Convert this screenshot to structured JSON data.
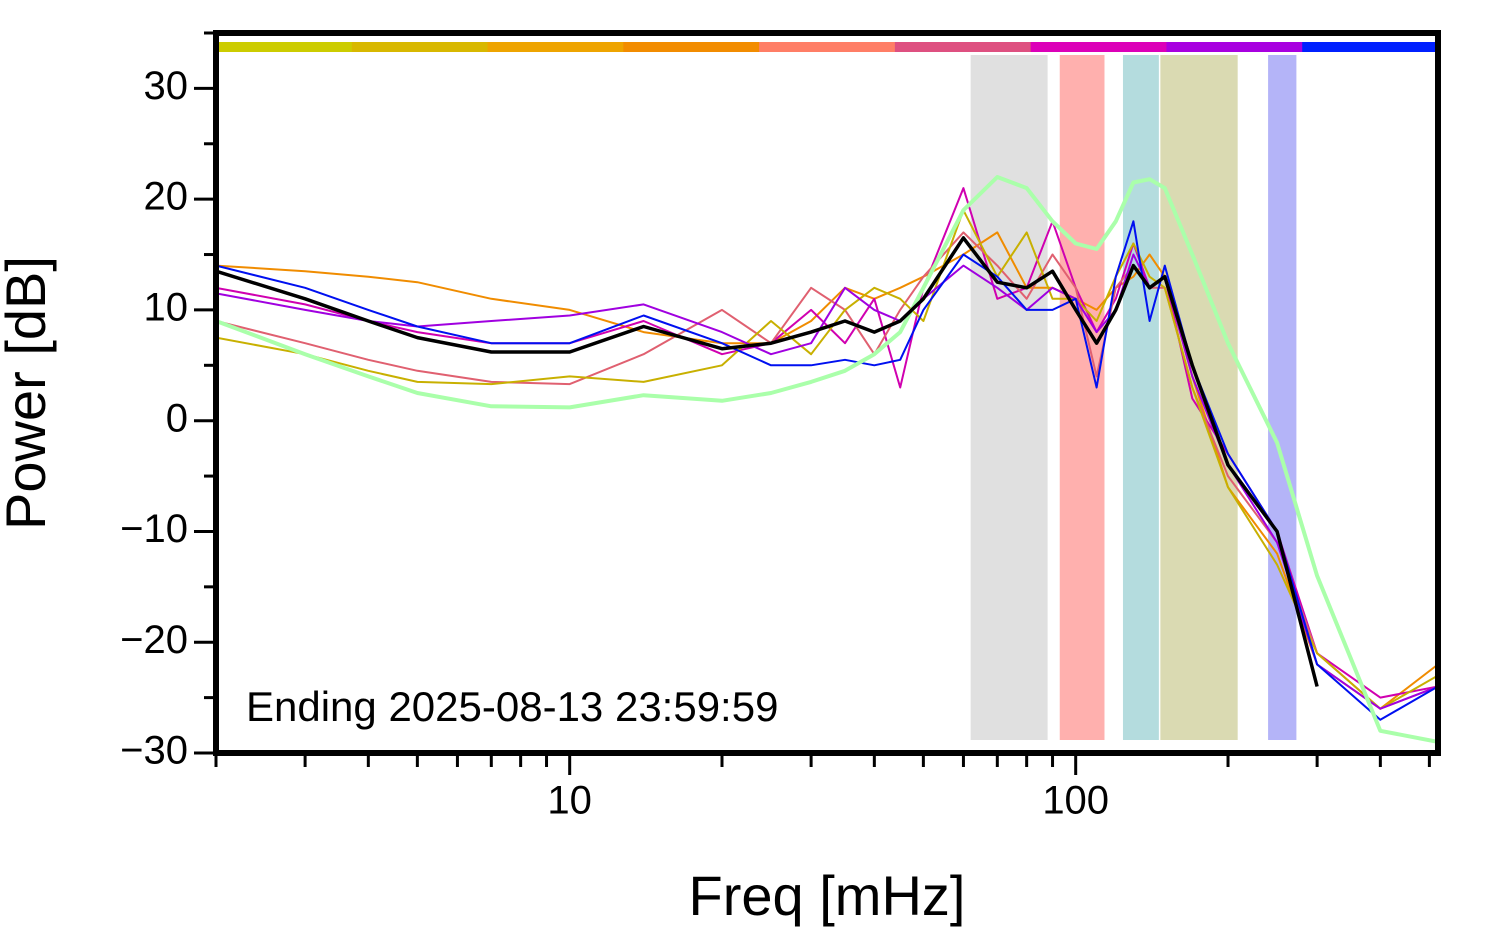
{
  "chart_data": {
    "type": "line",
    "annotation": "Ending 2025-08-13 23:59:59",
    "xlabel": "Freq [mHz]",
    "ylabel": "Power [dB]",
    "xscale": "log",
    "xlim": [
      2,
      520
    ],
    "ylim": [
      -30,
      35
    ],
    "xticks": [
      10,
      100
    ],
    "xticks_minor": [
      2,
      3,
      4,
      5,
      6,
      7,
      8,
      9,
      20,
      30,
      40,
      50,
      60,
      70,
      80,
      90,
      200,
      300,
      400,
      500
    ],
    "yticks": [
      {
        "value": -30,
        "label": "−30"
      },
      {
        "value": -20,
        "label": "−20"
      },
      {
        "value": -10,
        "label": "−10"
      },
      0,
      10,
      20,
      30
    ],
    "yticks_minor": [
      -25,
      -15,
      -5,
      5,
      15,
      25,
      35
    ],
    "top_bar_colors": [
      "#cccc00",
      "#d8b800",
      "#eea400",
      "#f28c00",
      "#ff7e66",
      "#de5080",
      "#dc00b8",
      "#a800e0",
      "#0020ff"
    ],
    "spans": [
      {
        "x0": 62,
        "x1": 88,
        "color": "#e0e0e0"
      },
      {
        "x0": 93,
        "x1": 114,
        "color": "#ffb0ae"
      },
      {
        "x0": 124,
        "x1": 146,
        "color": "#b4dcde"
      },
      {
        "x0": 147,
        "x1": 209,
        "color": "#dadab2"
      },
      {
        "x0": 240,
        "x1": 273,
        "color": "#b4b4f8"
      }
    ],
    "x": [
      2,
      3,
      4,
      5,
      7,
      10,
      14,
      20,
      25,
      30,
      35,
      40,
      45,
      50,
      60,
      70,
      80,
      90,
      100,
      110,
      120,
      130,
      140,
      150,
      170,
      200,
      250,
      300,
      400,
      520
    ],
    "series": [
      {
        "color": "#f08c00",
        "width": 2,
        "values": [
          14,
          13.5,
          13,
          12.5,
          11,
          10,
          8,
          7,
          7,
          9,
          12,
          11,
          12,
          13,
          15,
          17,
          12,
          12,
          11,
          10,
          12,
          13,
          15,
          13,
          4,
          -6,
          -12,
          -22,
          -26,
          -22
        ]
      },
      {
        "color": "#d000b0",
        "width": 2,
        "values": [
          12,
          10.5,
          9,
          8,
          7,
          7,
          9,
          6,
          7,
          10,
          7,
          11,
          3,
          12,
          21,
          11,
          12,
          18,
          12,
          8,
          11,
          16,
          12,
          13,
          2,
          -3,
          -10,
          -21,
          -25,
          -24
        ]
      },
      {
        "color": "#e06070",
        "width": 2,
        "values": [
          9,
          7,
          5.5,
          4.5,
          3.5,
          3.3,
          6,
          10,
          7,
          12,
          10,
          6,
          10,
          13,
          17,
          14,
          11,
          15,
          12,
          4,
          12,
          14,
          12,
          12,
          3,
          -5,
          -11,
          -21,
          -26,
          -24
        ]
      },
      {
        "color": "#c8b000",
        "width": 2,
        "values": [
          7.5,
          6,
          4.5,
          3.5,
          3.3,
          4,
          3.5,
          5,
          9,
          6,
          10,
          12,
          11,
          9,
          19,
          13,
          17,
          11,
          11,
          9,
          13,
          16,
          13,
          12,
          3,
          -6,
          -13,
          -21,
          -26,
          -23
        ]
      },
      {
        "color": "#a000e0",
        "width": 2,
        "values": [
          11.5,
          10,
          9,
          8.5,
          9,
          9.5,
          10.5,
          8,
          6,
          7,
          12,
          10,
          9,
          11,
          14,
          12,
          10,
          12,
          11,
          8,
          10,
          15,
          12,
          13,
          4,
          -4,
          -11,
          -22,
          -26,
          -24
        ]
      },
      {
        "color": "#0010f0",
        "width": 2,
        "values": [
          14,
          12,
          10,
          8.5,
          7,
          7,
          9.5,
          7,
          5,
          5,
          5.5,
          5,
          5.5,
          10,
          15,
          13,
          10,
          10,
          11,
          3,
          13,
          18,
          9,
          14,
          5,
          -3,
          -10,
          -22,
          -27,
          -24
        ]
      },
      {
        "color": "#aaffaa",
        "width": 4,
        "values": [
          9,
          6,
          4,
          2.5,
          1.3,
          1.2,
          2.3,
          1.8,
          2.5,
          3.5,
          4.5,
          6,
          8,
          12,
          19,
          22,
          21,
          18,
          16,
          15.5,
          18,
          21.5,
          21.8,
          21,
          15,
          7,
          -2,
          -14,
          -28,
          -29
        ]
      },
      {
        "color": "#000000",
        "width": 3.5,
        "values": [
          13.5,
          11,
          9,
          7.5,
          6.2,
          6.2,
          8.5,
          6.5,
          7,
          8,
          9,
          8,
          9,
          11,
          16.5,
          12.5,
          12,
          13.5,
          10,
          7,
          10,
          14,
          12,
          13,
          5,
          -4,
          -10,
          -24,
          null,
          null
        ]
      }
    ]
  }
}
